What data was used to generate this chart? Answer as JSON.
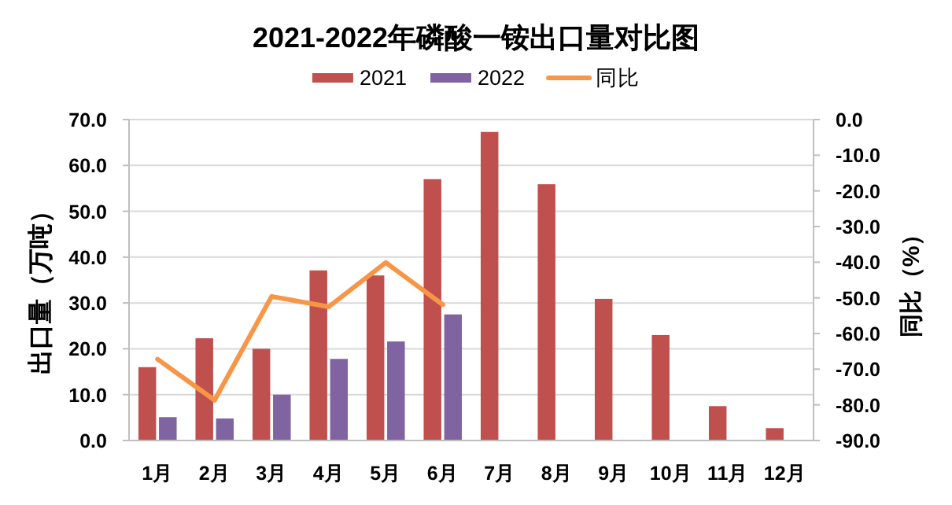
{
  "chart_data": {
    "type": "bar",
    "title": "2021-2022年磷酸一铵出口量对比图",
    "categories": [
      "1月",
      "2月",
      "3月",
      "4月",
      "5月",
      "6月",
      "7月",
      "8月",
      "9月",
      "10月",
      "11月",
      "12月"
    ],
    "ylabel": "出口量（万吨）",
    "y2label": "同比（%）",
    "series": [
      {
        "name": "2021",
        "color": "#c0504d",
        "values": [
          16.0,
          22.3,
          20.0,
          37.1,
          36.0,
          57.0,
          67.3,
          55.9,
          30.9,
          23.0,
          7.5,
          2.7
        ]
      },
      {
        "name": "2022",
        "color": "#8064a2",
        "values": [
          5.1,
          4.8,
          10.0,
          17.8,
          21.6,
          27.5,
          null,
          null,
          null,
          null,
          null,
          null
        ]
      },
      {
        "name": "同比",
        "type": "line",
        "axis": "y2",
        "color": "#f79646",
        "values": [
          -67.2,
          -78.7,
          -49.6,
          -52.5,
          -40.1,
          -51.9,
          null,
          null,
          null,
          null,
          null,
          null
        ]
      }
    ],
    "ylim": [
      0,
      70
    ],
    "yticks": [
      {
        "value": 0,
        "label": "0.0"
      },
      {
        "value": 10,
        "label": "10.0"
      },
      {
        "value": 20,
        "label": "20.0"
      },
      {
        "value": 30,
        "label": "30.0"
      },
      {
        "value": 40,
        "label": "40.0"
      },
      {
        "value": 50,
        "label": "50.0"
      },
      {
        "value": 60,
        "label": "60.0"
      },
      {
        "value": 70,
        "label": "70.0"
      }
    ],
    "y2lim": [
      -90,
      0
    ],
    "y2ticks": [
      {
        "value": 0,
        "label": "0.0"
      },
      {
        "value": -10,
        "label": "-10.0"
      },
      {
        "value": -20,
        "label": "-20.0"
      },
      {
        "value": -30,
        "label": "-30.0"
      },
      {
        "value": -40,
        "label": "-40.0"
      },
      {
        "value": -50,
        "label": "-50.0"
      },
      {
        "value": -60,
        "label": "-60.0"
      },
      {
        "value": -70,
        "label": "-70.0"
      },
      {
        "value": -80,
        "label": "-80.0"
      },
      {
        "value": -90,
        "label": "-90.0"
      }
    ],
    "grid": "y",
    "legend": "top"
  }
}
